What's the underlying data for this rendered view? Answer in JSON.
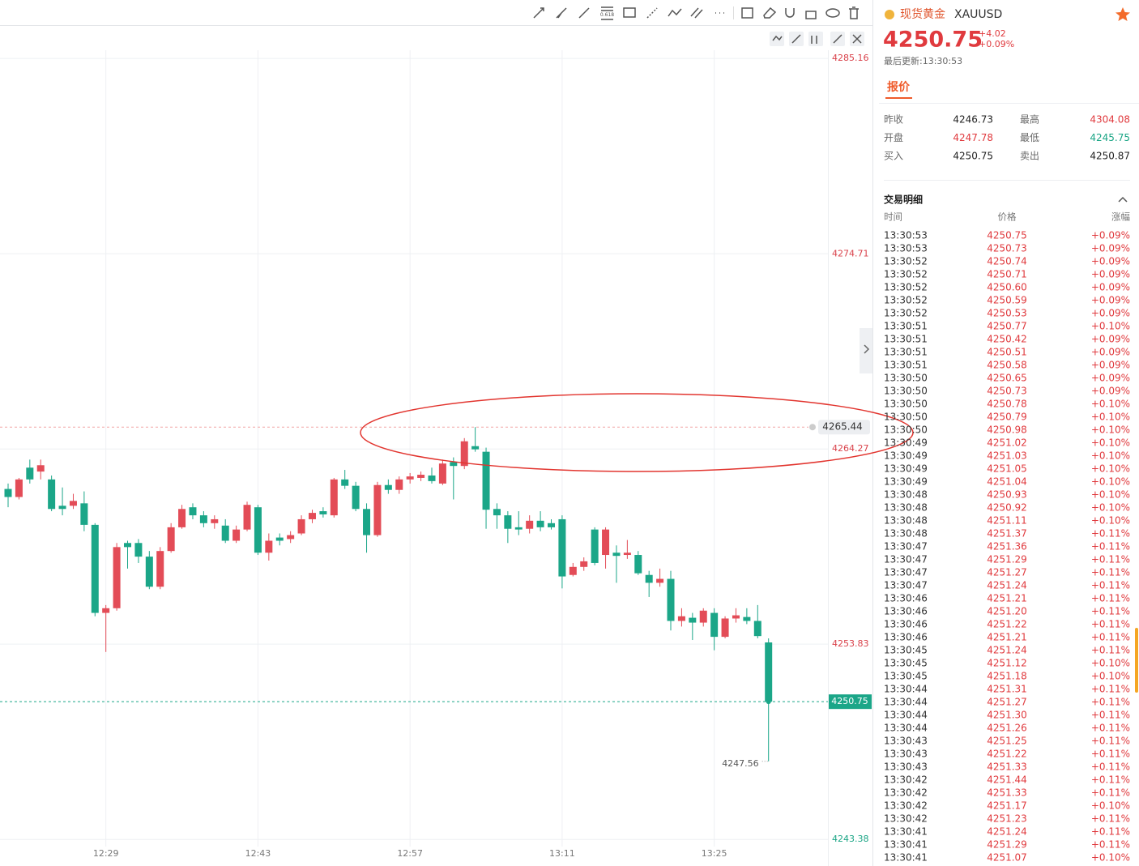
{
  "chart_data": {
    "type": "candlestick",
    "categories": [
      null,
      null,
      null,
      null,
      null,
      null,
      null,
      null,
      null,
      "12:29",
      null,
      null,
      null,
      null,
      null,
      null,
      null,
      null,
      null,
      null,
      null,
      null,
      null,
      "12:43",
      null,
      null,
      null,
      null,
      null,
      null,
      null,
      null,
      null,
      null,
      null,
      null,
      null,
      "12:57",
      null,
      null,
      null,
      null,
      null,
      null,
      null,
      null,
      null,
      null,
      null,
      null,
      null,
      "13:11",
      null,
      null,
      null,
      null,
      null,
      null,
      null,
      null,
      null,
      null,
      null,
      null,
      null,
      "13:25",
      null,
      null,
      null,
      null,
      null
    ],
    "open": [
      4262.13,
      4261.7,
      4263.27,
      4263.06,
      4262.64,
      4261.23,
      4261.23,
      4261.36,
      4260.21,
      4255.5,
      4255.75,
      4259.24,
      4259.24,
      4258.51,
      4256.9,
      4258.81,
      4260.08,
      4261.15,
      4260.72,
      4260.3,
      4260.17,
      4259.36,
      4259.96,
      4261.15,
      4258.72,
      4259.53,
      4259.45,
      4259.75,
      4260.51,
      4260.94,
      4260.72,
      4262.64,
      4262.3,
      4261.06,
      4259.66,
      4262.34,
      4262.08,
      4262.64,
      4262.72,
      4262.85,
      4262.42,
      4263.57,
      4263.36,
      4264.42,
      4264.12,
      4261.06,
      4260.72,
      4260.08,
      4260.0,
      4260.43,
      4260.3,
      4260.51,
      4257.53,
      4257.96,
      4259.96,
      4258.6,
      4258.72,
      4258.6,
      4258.6,
      4257.53,
      4257.11,
      4257.32,
      4255.07,
      4255.24,
      4254.98,
      4255.5,
      4254.22,
      4255.2,
      4255.28,
      4255.07,
      4253.92
    ],
    "high": [
      4262.42,
      4262.72,
      4263.7,
      4263.7,
      4262.85,
      4262.21,
      4261.87,
      4262.0,
      4260.3,
      4255.92,
      4259.24,
      4259.36,
      4259.45,
      4258.81,
      4259.02,
      4260.3,
      4261.28,
      4261.36,
      4260.94,
      4260.72,
      4260.51,
      4260.17,
      4261.45,
      4261.28,
      4259.75,
      4259.75,
      4259.87,
      4260.72,
      4261.02,
      4261.15,
      4262.72,
      4263.15,
      4262.51,
      4261.36,
      4262.51,
      4262.64,
      4262.8,
      4262.98,
      4263.06,
      4263.27,
      4263.7,
      4263.82,
      4264.85,
      4265.44,
      4264.34,
      4261.36,
      4260.94,
      4260.94,
      4260.72,
      4260.94,
      4260.51,
      4260.72,
      4258.17,
      4258.47,
      4260.08,
      4260.08,
      4259.11,
      4259.4,
      4258.81,
      4257.75,
      4257.87,
      4257.75,
      4255.75,
      4255.5,
      4255.75,
      4255.75,
      4255.32,
      4255.75,
      4255.75,
      4255.92,
      4254.14
    ],
    "low": [
      4261.15,
      4261.57,
      4262.42,
      4262.64,
      4260.94,
      4260.72,
      4261.06,
      4259.87,
      4255.32,
      4253.41,
      4255.62,
      4257.87,
      4258.17,
      4256.77,
      4256.77,
      4258.72,
      4260.0,
      4260.51,
      4260.08,
      4260.0,
      4259.24,
      4259.24,
      4259.87,
      4258.6,
      4258.3,
      4259.11,
      4259.24,
      4259.66,
      4260.3,
      4260.6,
      4260.6,
      4262.13,
      4260.94,
      4258.72,
      4259.57,
      4261.87,
      4261.87,
      4262.42,
      4262.55,
      4262.42,
      4262.34,
      4261.57,
      4263.19,
      4264.12,
      4260.0,
      4260.0,
      4259.24,
      4259.66,
      4259.75,
      4259.87,
      4259.96,
      4256.81,
      4257.45,
      4257.75,
      4258.05,
      4257.87,
      4257.11,
      4258.39,
      4257.53,
      4256.35,
      4256.9,
      4254.56,
      4254.77,
      4254.05,
      4254.77,
      4253.5,
      4254.14,
      4254.98,
      4254.9,
      4254.14,
      4247.56
    ],
    "close": [
      4261.7,
      4262.64,
      4262.64,
      4263.4,
      4261.06,
      4261.06,
      4261.49,
      4260.21,
      4255.5,
      4255.75,
      4259.02,
      4259.02,
      4258.51,
      4256.9,
      4258.81,
      4260.08,
      4261.06,
      4260.72,
      4260.3,
      4260.51,
      4259.36,
      4259.96,
      4261.28,
      4258.72,
      4259.36,
      4259.36,
      4259.66,
      4260.51,
      4260.85,
      4260.77,
      4262.64,
      4262.3,
      4261.06,
      4259.66,
      4262.34,
      4262.08,
      4262.64,
      4262.8,
      4262.89,
      4262.55,
      4263.49,
      4263.36,
      4264.68,
      4264.25,
      4261.02,
      4260.72,
      4260.0,
      4259.96,
      4260.43,
      4260.08,
      4260.08,
      4257.45,
      4257.96,
      4258.26,
      4258.17,
      4259.96,
      4258.55,
      4258.72,
      4257.62,
      4257.11,
      4257.32,
      4255.07,
      4255.32,
      4254.98,
      4255.62,
      4254.22,
      4255.2,
      4255.37,
      4255.07,
      4254.26,
      4250.75
    ],
    "ylim": [
      4243.0,
      4285.6
    ],
    "yticks": [
      4285.16,
      4274.71,
      4264.27,
      4253.83,
      4243.38
    ],
    "ytick_colors": [
      "#d9414a",
      "#d9414a",
      "#d9414a",
      "#d9414a",
      "#1aa585"
    ],
    "colors": {
      "up": "#e34c57",
      "down": "#1ba688"
    },
    "grid": true
  },
  "toolbar": {
    "fib_label": "0.618"
  },
  "header": {
    "name": "现货黄金",
    "symbol": "XAUUSD",
    "price": "4250.75",
    "change": "+4.02",
    "change_percent": "+0.09%",
    "last_update": "最后更新:13:30:53"
  },
  "tabs": [
    "报价"
  ],
  "quote": {
    "rows": [
      [
        "昨收",
        "4246.73",
        "最高",
        "4304.08"
      ],
      [
        "开盘",
        "4247.78",
        "最低",
        "4245.75"
      ],
      [
        "买入",
        "4250.75",
        "卖出",
        "4250.87"
      ]
    ]
  },
  "trades": {
    "title": "交易明细",
    "columns": [
      "时间",
      "价格",
      "涨幅"
    ],
    "rows": [
      [
        "13:30:53",
        "4250.75",
        "+0.09%"
      ],
      [
        "13:30:53",
        "4250.73",
        "+0.09%"
      ],
      [
        "13:30:52",
        "4250.74",
        "+0.09%"
      ],
      [
        "13:30:52",
        "4250.71",
        "+0.09%"
      ],
      [
        "13:30:52",
        "4250.60",
        "+0.09%"
      ],
      [
        "13:30:52",
        "4250.59",
        "+0.09%"
      ],
      [
        "13:30:52",
        "4250.53",
        "+0.09%"
      ],
      [
        "13:30:51",
        "4250.77",
        "+0.10%"
      ],
      [
        "13:30:51",
        "4250.42",
        "+0.09%"
      ],
      [
        "13:30:51",
        "4250.51",
        "+0.09%"
      ],
      [
        "13:30:51",
        "4250.58",
        "+0.09%"
      ],
      [
        "13:30:50",
        "4250.65",
        "+0.09%"
      ],
      [
        "13:30:50",
        "4250.73",
        "+0.09%"
      ],
      [
        "13:30:50",
        "4250.78",
        "+0.10%"
      ],
      [
        "13:30:50",
        "4250.79",
        "+0.10%"
      ],
      [
        "13:30:50",
        "4250.98",
        "+0.10%"
      ],
      [
        "13:30:49",
        "4251.02",
        "+0.10%"
      ],
      [
        "13:30:49",
        "4251.03",
        "+0.10%"
      ],
      [
        "13:30:49",
        "4251.05",
        "+0.10%"
      ],
      [
        "13:30:49",
        "4251.04",
        "+0.10%"
      ],
      [
        "13:30:48",
        "4250.93",
        "+0.10%"
      ],
      [
        "13:30:48",
        "4250.92",
        "+0.10%"
      ],
      [
        "13:30:48",
        "4251.11",
        "+0.10%"
      ],
      [
        "13:30:48",
        "4251.37",
        "+0.11%"
      ],
      [
        "13:30:47",
        "4251.36",
        "+0.11%"
      ],
      [
        "13:30:47",
        "4251.29",
        "+0.11%"
      ],
      [
        "13:30:47",
        "4251.27",
        "+0.11%"
      ],
      [
        "13:30:47",
        "4251.24",
        "+0.11%"
      ],
      [
        "13:30:46",
        "4251.21",
        "+0.11%"
      ],
      [
        "13:30:46",
        "4251.20",
        "+0.11%"
      ],
      [
        "13:30:46",
        "4251.22",
        "+0.11%"
      ],
      [
        "13:30:46",
        "4251.21",
        "+0.11%"
      ],
      [
        "13:30:45",
        "4251.24",
        "+0.11%"
      ],
      [
        "13:30:45",
        "4251.12",
        "+0.10%"
      ],
      [
        "13:30:45",
        "4251.18",
        "+0.10%"
      ],
      [
        "13:30:44",
        "4251.31",
        "+0.11%"
      ],
      [
        "13:30:44",
        "4251.27",
        "+0.11%"
      ],
      [
        "13:30:44",
        "4251.30",
        "+0.11%"
      ],
      [
        "13:30:44",
        "4251.26",
        "+0.11%"
      ],
      [
        "13:30:43",
        "4251.25",
        "+0.11%"
      ],
      [
        "13:30:43",
        "4251.22",
        "+0.11%"
      ],
      [
        "13:30:43",
        "4251.33",
        "+0.11%"
      ],
      [
        "13:30:42",
        "4251.44",
        "+0.11%"
      ],
      [
        "13:30:42",
        "4251.33",
        "+0.11%"
      ],
      [
        "13:30:42",
        "4251.17",
        "+0.10%"
      ],
      [
        "13:30:42",
        "4251.23",
        "+0.11%"
      ],
      [
        "13:30:41",
        "4251.24",
        "+0.11%"
      ],
      [
        "13:30:41",
        "4251.29",
        "+0.11%"
      ],
      [
        "13:30:41",
        "4251.07",
        "+0.10%"
      ]
    ]
  }
}
